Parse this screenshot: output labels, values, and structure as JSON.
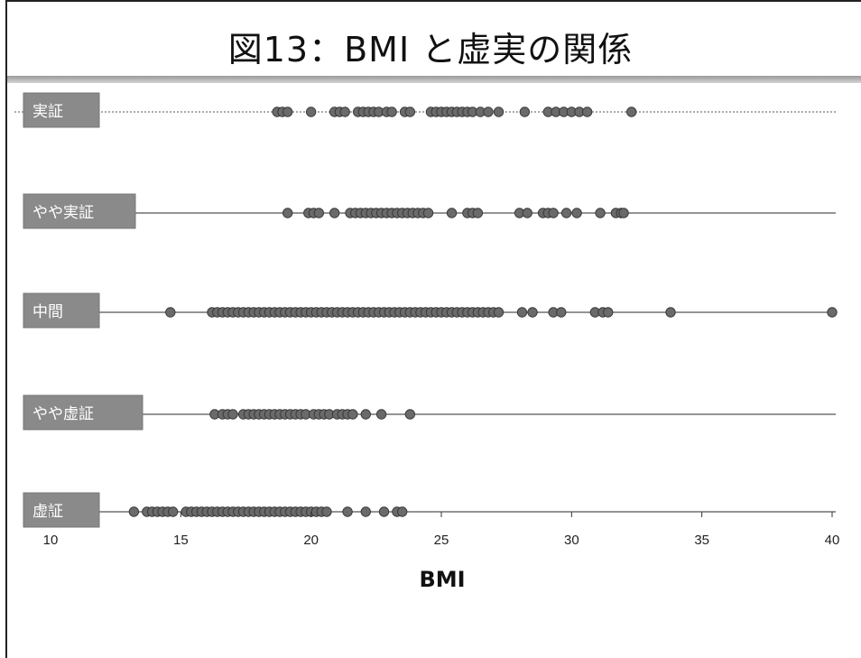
{
  "page": {
    "title": "図13：BMI と虚実の関係"
  },
  "chart_data": {
    "type": "scatter",
    "title": "図13：BMI と虚実の関係",
    "xlabel": "BMI",
    "ylabel": "",
    "xlim": [
      10,
      40
    ],
    "xticks": [
      10,
      15,
      20,
      25,
      30,
      35,
      40
    ],
    "grid": false,
    "legend": "none",
    "colors": {
      "point": "#6a6a6a",
      "point_stroke": "#3a3a3a",
      "label_bg": "#8a8a8a",
      "label_text": "#ffffff"
    },
    "categories": [
      "実証",
      "やや実証",
      "中間",
      "やや虚証",
      "虚証"
    ],
    "series": [
      {
        "name": "実証",
        "x": [
          18.7,
          18.9,
          19.1,
          20.0,
          20.9,
          21.1,
          21.3,
          21.8,
          22.0,
          22.2,
          22.4,
          22.6,
          22.9,
          23.1,
          23.6,
          23.8,
          24.6,
          24.8,
          25.0,
          25.2,
          25.4,
          25.6,
          25.8,
          26.0,
          26.2,
          26.5,
          26.8,
          27.2,
          28.2,
          29.1,
          29.4,
          29.7,
          30.0,
          30.3,
          30.6,
          32.3
        ]
      },
      {
        "name": "やや実証",
        "x": [
          19.1,
          19.9,
          20.1,
          20.3,
          20.9,
          21.5,
          21.7,
          21.9,
          22.1,
          22.3,
          22.5,
          22.7,
          22.9,
          23.1,
          23.3,
          23.5,
          23.7,
          23.9,
          24.1,
          24.3,
          24.5,
          25.4,
          26.0,
          26.2,
          26.4,
          28.0,
          28.3,
          28.9,
          29.1,
          29.3,
          29.8,
          30.2,
          31.1,
          31.7,
          31.9,
          32.0
        ]
      },
      {
        "name": "中間",
        "x": [
          14.6,
          16.2,
          16.4,
          16.6,
          16.8,
          17.0,
          17.2,
          17.4,
          17.6,
          17.8,
          18.0,
          18.2,
          18.4,
          18.6,
          18.8,
          19.0,
          19.2,
          19.4,
          19.6,
          19.8,
          20.0,
          20.2,
          20.4,
          20.6,
          20.8,
          21.0,
          21.2,
          21.4,
          21.6,
          21.8,
          22.0,
          22.2,
          22.4,
          22.6,
          22.8,
          23.0,
          23.2,
          23.4,
          23.6,
          23.8,
          24.0,
          24.2,
          24.4,
          24.6,
          24.8,
          25.0,
          25.2,
          25.4,
          25.6,
          25.8,
          26.0,
          26.2,
          26.4,
          26.6,
          26.8,
          27.0,
          27.2,
          28.1,
          28.5,
          29.3,
          29.6,
          30.9,
          31.2,
          31.4,
          33.8,
          40.0
        ]
      },
      {
        "name": "やや虚証",
        "x": [
          16.3,
          16.6,
          16.8,
          17.0,
          17.4,
          17.6,
          17.8,
          18.0,
          18.2,
          18.4,
          18.6,
          18.8,
          19.0,
          19.2,
          19.4,
          19.6,
          19.8,
          20.1,
          20.3,
          20.5,
          20.7,
          21.0,
          21.2,
          21.4,
          21.6,
          22.1,
          22.7,
          23.8
        ]
      },
      {
        "name": "虚証",
        "x": [
          13.2,
          13.7,
          13.9,
          14.1,
          14.3,
          14.5,
          14.7,
          15.2,
          15.4,
          15.6,
          15.8,
          16.0,
          16.2,
          16.4,
          16.6,
          16.8,
          17.0,
          17.2,
          17.4,
          17.6,
          17.8,
          18.0,
          18.2,
          18.4,
          18.6,
          18.8,
          19.0,
          19.2,
          19.4,
          19.6,
          19.8,
          20.0,
          20.2,
          20.4,
          20.6,
          21.4,
          22.1,
          22.8,
          23.3,
          23.5
        ]
      }
    ]
  }
}
